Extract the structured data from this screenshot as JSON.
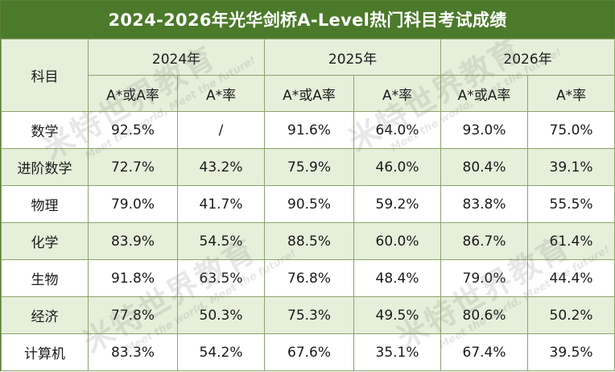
{
  "title": "2024-2026年光华剑桥A-Level热门科目考试成绩",
  "header": {
    "subject_label": "科目",
    "years": [
      "2024年",
      "2025年",
      "2026年"
    ],
    "col_astar_a": "A*或A率",
    "col_astar": "A*率"
  },
  "rows": [
    {
      "subject": "数学",
      "y2024": [
        "92.5%",
        "/"
      ],
      "y2025": [
        "91.6%",
        "64.0%"
      ],
      "y2026": [
        "93.0%",
        "75.0%"
      ]
    },
    {
      "subject": "进阶数学",
      "y2024": [
        "72.7%",
        "43.2%"
      ],
      "y2025": [
        "75.9%",
        "46.0%"
      ],
      "y2026": [
        "80.4%",
        "39.1%"
      ]
    },
    {
      "subject": "物理",
      "y2024": [
        "79.0%",
        "41.7%"
      ],
      "y2025": [
        "90.5%",
        "59.2%"
      ],
      "y2026": [
        "83.8%",
        "55.5%"
      ]
    },
    {
      "subject": "化学",
      "y2024": [
        "83.9%",
        "54.5%"
      ],
      "y2025": [
        "88.5%",
        "60.0%"
      ],
      "y2026": [
        "86.7%",
        "61.4%"
      ]
    },
    {
      "subject": "生物",
      "y2024": [
        "91.8%",
        "63.5%"
      ],
      "y2025": [
        "76.8%",
        "48.4%"
      ],
      "y2026": [
        "79.0%",
        "44.4%"
      ]
    },
    {
      "subject": "经济",
      "y2024": [
        "77.8%",
        "50.3%"
      ],
      "y2025": [
        "75.3%",
        "49.5%"
      ],
      "y2026": [
        "80.6%",
        "50.2%"
      ]
    },
    {
      "subject": "计算机",
      "y2024": [
        "83.3%",
        "54.2%"
      ],
      "y2025": [
        "67.6%",
        "35.1%"
      ],
      "y2026": [
        "67.4%",
        "39.5%"
      ]
    }
  ],
  "watermark": {
    "brand": "米特世界教育",
    "slogan": "Meet the world, Meet the future!"
  }
}
